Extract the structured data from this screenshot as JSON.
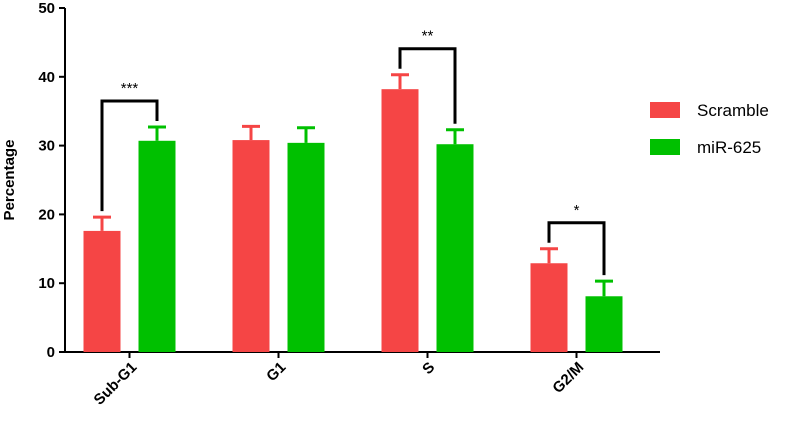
{
  "chart_data": {
    "type": "bar",
    "y_label": "Percentage",
    "categories": [
      "Sub-G1",
      "G1",
      "S",
      "G2/M"
    ],
    "series": [
      {
        "name": "Scramble",
        "color": "#f54545",
        "values": [
          17.6,
          30.8,
          38.2,
          12.9
        ],
        "errors": [
          2.0,
          2.0,
          2.1,
          2.1
        ]
      },
      {
        "name": "miR-625",
        "color": "#00c000",
        "values": [
          30.7,
          30.4,
          30.2,
          8.1
        ],
        "errors": [
          2.0,
          2.2,
          2.1,
          2.2
        ]
      }
    ],
    "ylim": [
      0,
      50
    ],
    "yticks": [
      0,
      10,
      20,
      30,
      40,
      50
    ],
    "annotations": [
      {
        "category": 0,
        "label": "***"
      },
      {
        "category": 2,
        "label": "**"
      },
      {
        "category": 3,
        "label": "*"
      }
    ],
    "legend": "right"
  }
}
